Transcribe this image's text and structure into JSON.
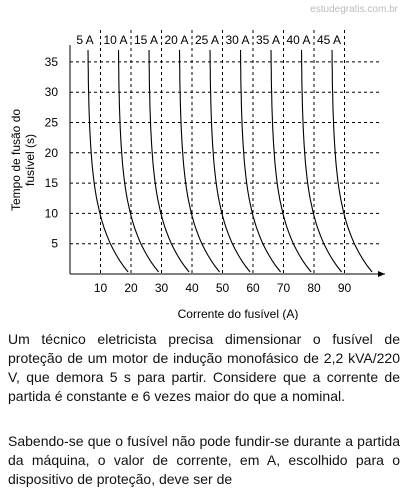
{
  "watermark": "estudegratis.com.br",
  "figure": {
    "y_label": [
      "Tempo de fusão do",
      "fusível (s)"
    ],
    "x_label": "Corrente do fusível (A)",
    "xticks": [
      10,
      20,
      30,
      40,
      50,
      60,
      70,
      80,
      90
    ],
    "yticks": [
      5,
      10,
      15,
      20,
      25,
      30,
      35
    ],
    "curves": [
      "5 A",
      "10 A",
      "15 A",
      "20 A",
      "25 A",
      "30 A",
      "35 A",
      "40 A",
      "45 A"
    ]
  },
  "paragraphs": [
    "Um técnico eletricista precisa dimensionar o fusível de proteção de um motor de indução monofásico de 2,2 kVA/220 V, que demora 5 s para partir. Considere que a corrente de partida é constante e 6 vezes maior do que a nominal.",
    "Sabendo-se que o fusível não pode fundir-se durante a partida da máquina, o valor de corrente, em A, escolhido para o dispositivo de proteção, deve ser de"
  ]
}
